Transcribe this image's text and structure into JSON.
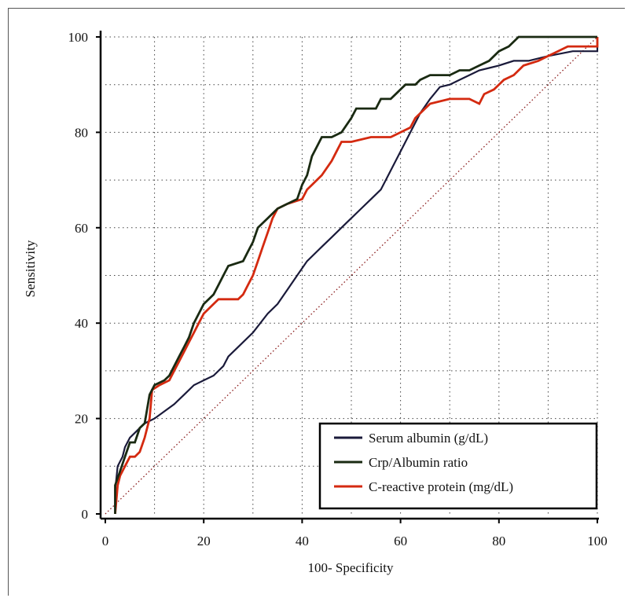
{
  "chart_data": {
    "type": "line",
    "title": "",
    "xlabel": "100- Specificity",
    "ylabel": "Sensitivity",
    "xlim": [
      0,
      100
    ],
    "ylim": [
      0,
      100
    ],
    "xticks": [
      "0",
      "20",
      "40",
      "60",
      "80",
      "100"
    ],
    "yticks": [
      "0",
      "20",
      "40",
      "60",
      "80",
      "100"
    ],
    "grid": true,
    "legend_position": "bottom-right",
    "reference_line": {
      "style": "dotted",
      "from": [
        0,
        0
      ],
      "to": [
        100,
        100
      ],
      "color": "#8a1a1a"
    },
    "series": [
      {
        "name": "Serum albumin (g/dL)",
        "color": "#1a1a3a",
        "points": [
          [
            2,
            0
          ],
          [
            2,
            5
          ],
          [
            2.5,
            10
          ],
          [
            3.5,
            12
          ],
          [
            4,
            14
          ],
          [
            5,
            16
          ],
          [
            6,
            17
          ],
          [
            7,
            18
          ],
          [
            8,
            19
          ],
          [
            10,
            20
          ],
          [
            12,
            21.5
          ],
          [
            14,
            23
          ],
          [
            16,
            25
          ],
          [
            18,
            27
          ],
          [
            20,
            28
          ],
          [
            22,
            29
          ],
          [
            24,
            31
          ],
          [
            25,
            33
          ],
          [
            27,
            35
          ],
          [
            30,
            38
          ],
          [
            33,
            42
          ],
          [
            35,
            44
          ],
          [
            37,
            47
          ],
          [
            39,
            50
          ],
          [
            41,
            53
          ],
          [
            43,
            55
          ],
          [
            44,
            56
          ],
          [
            46,
            58
          ],
          [
            49,
            61
          ],
          [
            52,
            64
          ],
          [
            54,
            66
          ],
          [
            56,
            68
          ],
          [
            58,
            72
          ],
          [
            60,
            76
          ],
          [
            62,
            80
          ],
          [
            64,
            84
          ],
          [
            66,
            87
          ],
          [
            68,
            89.5
          ],
          [
            70,
            90
          ],
          [
            72,
            91
          ],
          [
            74,
            92
          ],
          [
            76,
            93
          ],
          [
            78,
            93.5
          ],
          [
            80,
            94
          ],
          [
            83,
            95
          ],
          [
            86,
            95
          ],
          [
            90,
            96
          ],
          [
            95,
            97
          ],
          [
            100,
            97
          ],
          [
            100,
            100
          ]
        ]
      },
      {
        "name": "Crp/Albumin ratio",
        "color": "#1a2a12",
        "points": [
          [
            2,
            0
          ],
          [
            2,
            6
          ],
          [
            3,
            9
          ],
          [
            4,
            12
          ],
          [
            5,
            15
          ],
          [
            6,
            15
          ],
          [
            7,
            18
          ],
          [
            8,
            19
          ],
          [
            9,
            25
          ],
          [
            10,
            27
          ],
          [
            12,
            28
          ],
          [
            13,
            29
          ],
          [
            15,
            33
          ],
          [
            16,
            35
          ],
          [
            17,
            37
          ],
          [
            18,
            40
          ],
          [
            19,
            42
          ],
          [
            20,
            44
          ],
          [
            22,
            46
          ],
          [
            23,
            48
          ],
          [
            24,
            50
          ],
          [
            25,
            52
          ],
          [
            28,
            53
          ],
          [
            29,
            55
          ],
          [
            30,
            57
          ],
          [
            31,
            60
          ],
          [
            33,
            62
          ],
          [
            35,
            64
          ],
          [
            37,
            65
          ],
          [
            39,
            66
          ],
          [
            40,
            69
          ],
          [
            41,
            71
          ],
          [
            42,
            75
          ],
          [
            43,
            77
          ],
          [
            44,
            79
          ],
          [
            46,
            79
          ],
          [
            48,
            80
          ],
          [
            50,
            83
          ],
          [
            51,
            85
          ],
          [
            55,
            85
          ],
          [
            56,
            87
          ],
          [
            58,
            87
          ],
          [
            60,
            89
          ],
          [
            61,
            90
          ],
          [
            63,
            90
          ],
          [
            64,
            91
          ],
          [
            66,
            92
          ],
          [
            70,
            92
          ],
          [
            72,
            93
          ],
          [
            74,
            93
          ],
          [
            76,
            94
          ],
          [
            78,
            95
          ],
          [
            80,
            97
          ],
          [
            82,
            98
          ],
          [
            84,
            100
          ],
          [
            100,
            100
          ]
        ]
      },
      {
        "name": "C-reactive protein (mg/dL)",
        "color": "#d42a10",
        "points": [
          [
            2,
            0
          ],
          [
            2.5,
            6
          ],
          [
            3,
            8
          ],
          [
            4,
            10
          ],
          [
            5,
            12
          ],
          [
            6,
            12
          ],
          [
            7,
            13
          ],
          [
            8,
            16
          ],
          [
            9,
            20
          ],
          [
            9.5,
            26
          ],
          [
            11,
            27
          ],
          [
            13,
            28
          ],
          [
            14,
            30
          ],
          [
            15,
            32
          ],
          [
            16,
            34
          ],
          [
            17,
            36
          ],
          [
            18,
            38
          ],
          [
            19,
            40
          ],
          [
            20,
            42
          ],
          [
            22,
            44
          ],
          [
            23,
            45
          ],
          [
            27,
            45
          ],
          [
            28,
            46
          ],
          [
            29,
            48
          ],
          [
            30,
            50
          ],
          [
            31,
            53
          ],
          [
            32,
            56
          ],
          [
            33,
            59
          ],
          [
            34,
            62
          ],
          [
            35,
            64
          ],
          [
            37,
            65
          ],
          [
            40,
            66
          ],
          [
            41,
            68
          ],
          [
            42,
            69
          ],
          [
            44,
            71
          ],
          [
            46,
            74
          ],
          [
            47,
            76
          ],
          [
            48,
            78
          ],
          [
            50,
            78
          ],
          [
            54,
            79
          ],
          [
            58,
            79
          ],
          [
            60,
            80
          ],
          [
            62,
            81
          ],
          [
            63,
            83
          ],
          [
            65,
            85
          ],
          [
            66,
            86
          ],
          [
            70,
            87
          ],
          [
            74,
            87
          ],
          [
            76,
            86
          ],
          [
            77,
            88
          ],
          [
            79,
            89
          ],
          [
            81,
            91
          ],
          [
            83,
            92
          ],
          [
            85,
            94
          ],
          [
            88,
            95
          ],
          [
            90,
            96
          ],
          [
            92,
            97
          ],
          [
            94,
            98
          ],
          [
            100,
            98
          ],
          [
            100,
            100
          ]
        ]
      }
    ]
  }
}
